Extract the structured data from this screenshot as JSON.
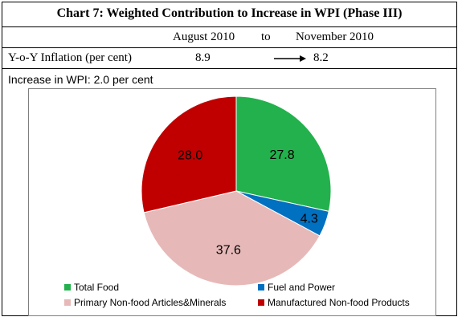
{
  "header": {
    "title": "Chart 7: Weighted Contribution to Increase in WPI (Phase III)",
    "from_label": "August 2010",
    "to_label": "to",
    "end_label": "November 2010",
    "inflation_label": "Y-o-Y Inflation (per cent)",
    "inflation_from": "8.9",
    "inflation_to": "8.2",
    "increase_text": "Increase in WPI: 2.0 per cent"
  },
  "chart_data": {
    "type": "pie",
    "title": "",
    "slices": [
      {
        "name": "Total Food",
        "value": 27.8,
        "label": "27.8",
        "color": "#22b14c"
      },
      {
        "name": "Fuel and Power",
        "value": 4.3,
        "label": "4.3",
        "color": "#0070c0"
      },
      {
        "name": "Primary Non-food Articles&Minerals",
        "value": 37.6,
        "label": "37.6",
        "color": "#e6b9b8"
      },
      {
        "name": "Manufactured Non-food Products",
        "value": 28.0,
        "label": "28.0",
        "color": "#c00000"
      }
    ],
    "legend_position": "bottom"
  }
}
